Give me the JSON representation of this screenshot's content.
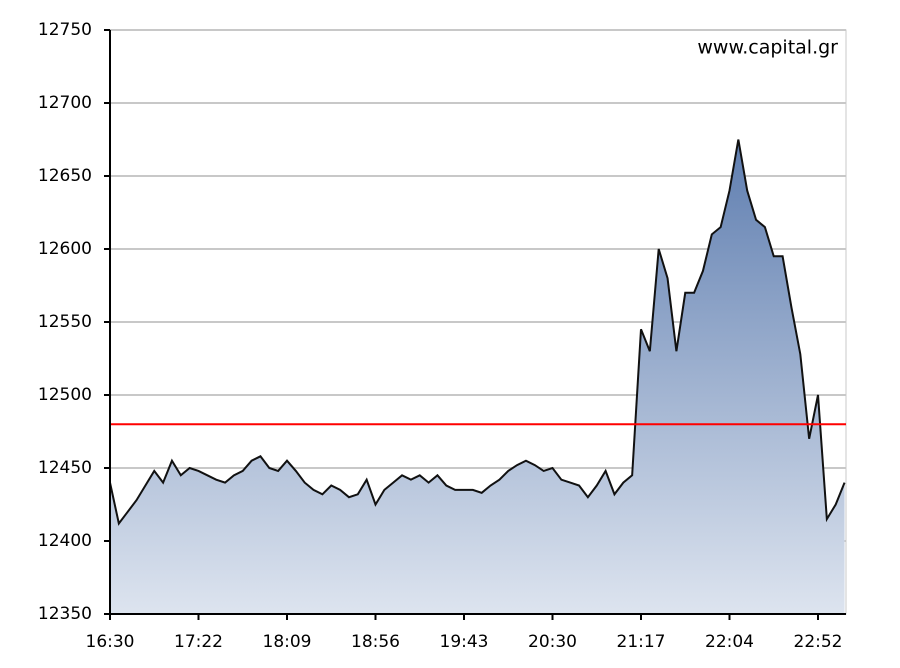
{
  "chart_data": {
    "type": "area",
    "annotation": "www.capital.gr",
    "categories": [
      "16:30",
      null,
      null,
      null,
      null,
      null,
      null,
      null,
      null,
      null,
      "17:22",
      null,
      null,
      null,
      null,
      null,
      null,
      null,
      null,
      null,
      "18:09",
      null,
      null,
      null,
      null,
      null,
      null,
      null,
      null,
      null,
      "18:56",
      null,
      null,
      null,
      null,
      null,
      null,
      null,
      null,
      null,
      "19:43",
      null,
      null,
      null,
      null,
      null,
      null,
      null,
      null,
      null,
      "20:30",
      null,
      null,
      null,
      null,
      null,
      null,
      null,
      null,
      null,
      "21:17",
      null,
      null,
      null,
      null,
      null,
      null,
      null,
      null,
      null,
      "22:04",
      null,
      null,
      null,
      null,
      null,
      null,
      null,
      null,
      null,
      "22:52",
      null,
      null,
      null
    ],
    "values": [
      12440,
      12412,
      12420,
      12428,
      12438,
      12448,
      12440,
      12455,
      12445,
      12450,
      12448,
      12445,
      12442,
      12440,
      12445,
      12448,
      12455,
      12458,
      12450,
      12448,
      12455,
      12448,
      12440,
      12435,
      12432,
      12438,
      12435,
      12430,
      12432,
      12442,
      12425,
      12435,
      12440,
      12445,
      12442,
      12445,
      12440,
      12445,
      12438,
      12435,
      12435,
      12435,
      12433,
      12438,
      12442,
      12448,
      12452,
      12455,
      12452,
      12448,
      12450,
      12442,
      12440,
      12438,
      12430,
      12438,
      12448,
      12432,
      12440,
      12445,
      12545,
      12530,
      12600,
      12580,
      12530,
      12570,
      12570,
      12585,
      12610,
      12615,
      12640,
      12675,
      12640,
      12620,
      12615,
      12595,
      12595,
      12560,
      12528,
      12470,
      12500,
      12415,
      12425,
      12440
    ],
    "color": "#5f7eb0",
    "reference_line": 12480,
    "reference_color": "#ff0000",
    "ylim": [
      12350,
      12750
    ],
    "yticks": [
      12350,
      12400,
      12450,
      12500,
      12550,
      12600,
      12650,
      12700,
      12750
    ],
    "grid": true
  }
}
